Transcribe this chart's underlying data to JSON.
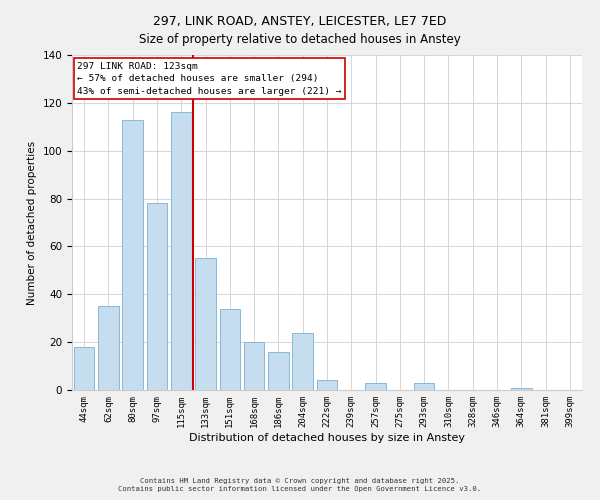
{
  "title": "297, LINK ROAD, ANSTEY, LEICESTER, LE7 7ED",
  "subtitle": "Size of property relative to detached houses in Anstey",
  "xlabel": "Distribution of detached houses by size in Anstey",
  "ylabel": "Number of detached properties",
  "bar_labels": [
    "44sqm",
    "62sqm",
    "80sqm",
    "97sqm",
    "115sqm",
    "133sqm",
    "151sqm",
    "168sqm",
    "186sqm",
    "204sqm",
    "222sqm",
    "239sqm",
    "257sqm",
    "275sqm",
    "293sqm",
    "310sqm",
    "328sqm",
    "346sqm",
    "364sqm",
    "381sqm",
    "399sqm"
  ],
  "bar_values": [
    18,
    35,
    113,
    78,
    116,
    55,
    34,
    20,
    16,
    24,
    4,
    0,
    3,
    0,
    3,
    0,
    0,
    0,
    1,
    0,
    0
  ],
  "bar_color": "#c6ddef",
  "bar_edge_color": "#7ab0d4",
  "vline_color": "#cc0000",
  "ylim": [
    0,
    140
  ],
  "yticks": [
    0,
    20,
    40,
    60,
    80,
    100,
    120,
    140
  ],
  "annotation_title": "297 LINK ROAD: 123sqm",
  "annotation_line1": "← 57% of detached houses are smaller (294)",
  "annotation_line2": "43% of semi-detached houses are larger (221) →",
  "footer_line1": "Contains HM Land Registry data © Crown copyright and database right 2025.",
  "footer_line2": "Contains public sector information licensed under the Open Government Licence v3.0.",
  "background_color": "#f0f0f0",
  "plot_bg_color": "#ffffff",
  "title_fontsize": 9,
  "subtitle_fontsize": 8.5
}
